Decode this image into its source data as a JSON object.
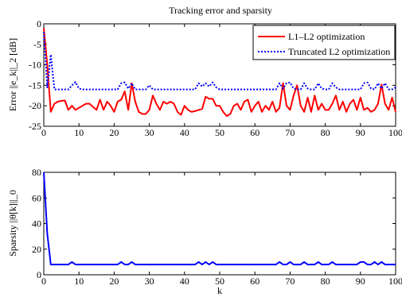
{
  "chart_data": [
    {
      "type": "line",
      "title": "Tracking error and sparsity",
      "ylabel": "Error ||e_k||_2 [dB]",
      "xlim": [
        0,
        100
      ],
      "ylim": [
        -25,
        0
      ],
      "xticks": [
        0,
        10,
        20,
        30,
        40,
        50,
        60,
        70,
        80,
        90,
        100
      ],
      "yticks": [
        -25,
        -20,
        -15,
        -10,
        -5,
        0
      ],
      "legend_position": "top-right",
      "series": [
        {
          "name": "L1–L2 optimization",
          "color": "#ff0000",
          "style": "solid",
          "x": [
            0,
            1,
            2,
            3,
            4,
            5,
            6,
            7,
            8,
            9,
            10,
            11,
            12,
            13,
            14,
            15,
            16,
            17,
            18,
            19,
            20,
            21,
            22,
            23,
            24,
            25,
            26,
            27,
            28,
            29,
            30,
            31,
            32,
            33,
            34,
            35,
            36,
            37,
            38,
            39,
            40,
            41,
            42,
            43,
            44,
            45,
            46,
            47,
            48,
            49,
            50,
            51,
            52,
            53,
            54,
            55,
            56,
            57,
            58,
            59,
            60,
            61,
            62,
            63,
            64,
            65,
            66,
            67,
            68,
            69,
            70,
            71,
            72,
            73,
            74,
            75,
            76,
            77,
            78,
            79,
            80,
            81,
            82,
            83,
            84,
            85,
            86,
            87,
            88,
            89,
            90,
            91,
            92,
            93,
            94,
            95,
            96,
            97,
            98,
            99,
            100
          ],
          "values": [
            -1,
            -10,
            -21.5,
            -19.5,
            -19,
            -18.8,
            -18.7,
            -21,
            -20,
            -21,
            -20.5,
            -20,
            -19.5,
            -19.5,
            -20.3,
            -21,
            -18.5,
            -21,
            -19,
            -20,
            -21.5,
            -19,
            -18.5,
            -16.5,
            -21,
            -14.5,
            -19,
            -21.5,
            -22,
            -22,
            -21,
            -17.5,
            -19.5,
            -21,
            -19,
            -19.5,
            -19,
            -19.5,
            -21.5,
            -22.2,
            -20,
            -21,
            -21.5,
            -21.3,
            -21,
            -20.8,
            -17.8,
            -18.3,
            -18.3,
            -20,
            -20,
            -21.5,
            -22.5,
            -22,
            -20,
            -19.5,
            -21,
            -19,
            -18.5,
            -21.5,
            -20,
            -19,
            -21.5,
            -20,
            -21,
            -19,
            -21.5,
            -20.5,
            -14.5,
            -20,
            -21,
            -17.5,
            -15,
            -20,
            -21.5,
            -18,
            -21.5,
            -17.5,
            -21,
            -19.5,
            -21,
            -21,
            -19.5,
            -17.5,
            -21,
            -19,
            -21.5,
            -19.5,
            -18.5,
            -21,
            -18,
            -21,
            -20.5,
            -21.5,
            -21,
            -19.5,
            -14.8,
            -19.5,
            -21,
            -18,
            -21.5
          ]
        },
        {
          "name": "Truncated L2 optimization",
          "color": "#0000ff",
          "style": "dotted",
          "x": [
            0,
            1,
            2,
            3,
            4,
            5,
            6,
            7,
            8,
            9,
            10,
            11,
            12,
            13,
            14,
            15,
            16,
            17,
            18,
            19,
            20,
            21,
            22,
            23,
            24,
            25,
            26,
            27,
            28,
            29,
            30,
            31,
            32,
            33,
            34,
            35,
            36,
            37,
            38,
            39,
            40,
            41,
            42,
            43,
            44,
            45,
            46,
            47,
            48,
            49,
            50,
            51,
            52,
            53,
            54,
            55,
            56,
            57,
            58,
            59,
            60,
            61,
            62,
            63,
            64,
            65,
            66,
            67,
            68,
            69,
            70,
            71,
            72,
            73,
            74,
            75,
            76,
            77,
            78,
            79,
            80,
            81,
            82,
            83,
            84,
            85,
            86,
            87,
            88,
            89,
            90,
            91,
            92,
            93,
            94,
            95,
            96,
            97,
            98,
            99,
            100
          ],
          "values": [
            -2,
            -15.5,
            -7.5,
            -16,
            -16,
            -16,
            -16,
            -16,
            -15,
            -14.2,
            -15.8,
            -16,
            -16,
            -16,
            -16,
            -16,
            -16,
            -16,
            -16,
            -16,
            -16,
            -16,
            -14.5,
            -14.3,
            -15.8,
            -14.5,
            -16,
            -16,
            -16,
            -16,
            -15,
            -16,
            -16,
            -16,
            -16,
            -16,
            -16,
            -16,
            -16,
            -16,
            -16,
            -16,
            -16,
            -16,
            -14.5,
            -15.3,
            -14.5,
            -15.3,
            -14.3,
            -15.5,
            -16,
            -16,
            -16,
            -16,
            -16,
            -16,
            -16,
            -16,
            -16,
            -16,
            -16,
            -16,
            -16,
            -16,
            -16,
            -16,
            -16,
            -14.5,
            -15.8,
            -14.5,
            -14.3,
            -15.8,
            -16,
            -16,
            -14.5,
            -15.8,
            -16,
            -16,
            -14.5,
            -15.8,
            -16,
            -16,
            -14.5,
            -15.5,
            -16,
            -16,
            -16,
            -16,
            -16,
            -16,
            -16,
            -14.5,
            -14.3,
            -15.8,
            -16,
            -14.5,
            -15.8,
            -14.5,
            -16,
            -16,
            -15.5
          ]
        }
      ]
    },
    {
      "type": "line",
      "title": "",
      "xlabel": "k",
      "ylabel": "Sparsity ||θ[k]||_0",
      "xlim": [
        0,
        100
      ],
      "ylim": [
        0,
        80
      ],
      "xticks": [
        0,
        10,
        20,
        30,
        40,
        50,
        60,
        70,
        80,
        90,
        100
      ],
      "yticks": [
        0,
        20,
        40,
        60,
        80
      ],
      "series": [
        {
          "color": "#0000ff",
          "style": "solid",
          "x": [
            0,
            1,
            2,
            3,
            4,
            5,
            6,
            7,
            8,
            9,
            10,
            11,
            12,
            13,
            14,
            15,
            16,
            17,
            18,
            19,
            20,
            21,
            22,
            23,
            24,
            25,
            26,
            27,
            28,
            29,
            30,
            31,
            32,
            33,
            34,
            35,
            36,
            37,
            38,
            39,
            40,
            41,
            42,
            43,
            44,
            45,
            46,
            47,
            48,
            49,
            50,
            51,
            52,
            53,
            54,
            55,
            56,
            57,
            58,
            59,
            60,
            61,
            62,
            63,
            64,
            65,
            66,
            67,
            68,
            69,
            70,
            71,
            72,
            73,
            74,
            75,
            76,
            77,
            78,
            79,
            80,
            81,
            82,
            83,
            84,
            85,
            86,
            87,
            88,
            89,
            90,
            91,
            92,
            93,
            94,
            95,
            96,
            97,
            98,
            99,
            100
          ],
          "values": [
            80,
            32,
            8,
            8,
            8,
            8,
            8,
            8,
            10,
            8,
            8,
            8,
            8,
            8,
            8,
            8,
            8,
            8,
            8,
            8,
            8,
            8,
            10,
            8,
            8,
            10,
            8,
            8,
            8,
            8,
            8,
            8,
            8,
            8,
            8,
            8,
            8,
            8,
            8,
            8,
            8,
            8,
            8,
            8,
            10,
            8,
            10,
            8,
            10,
            8,
            8,
            8,
            8,
            8,
            8,
            8,
            8,
            8,
            8,
            8,
            8,
            8,
            8,
            8,
            8,
            8,
            8,
            10,
            8,
            8,
            10,
            8,
            8,
            8,
            10,
            8,
            8,
            8,
            10,
            8,
            8,
            8,
            10,
            8,
            8,
            8,
            8,
            8,
            8,
            8,
            10,
            10,
            8,
            8,
            10,
            8,
            10,
            8,
            8,
            8,
            8
          ]
        }
      ]
    }
  ]
}
